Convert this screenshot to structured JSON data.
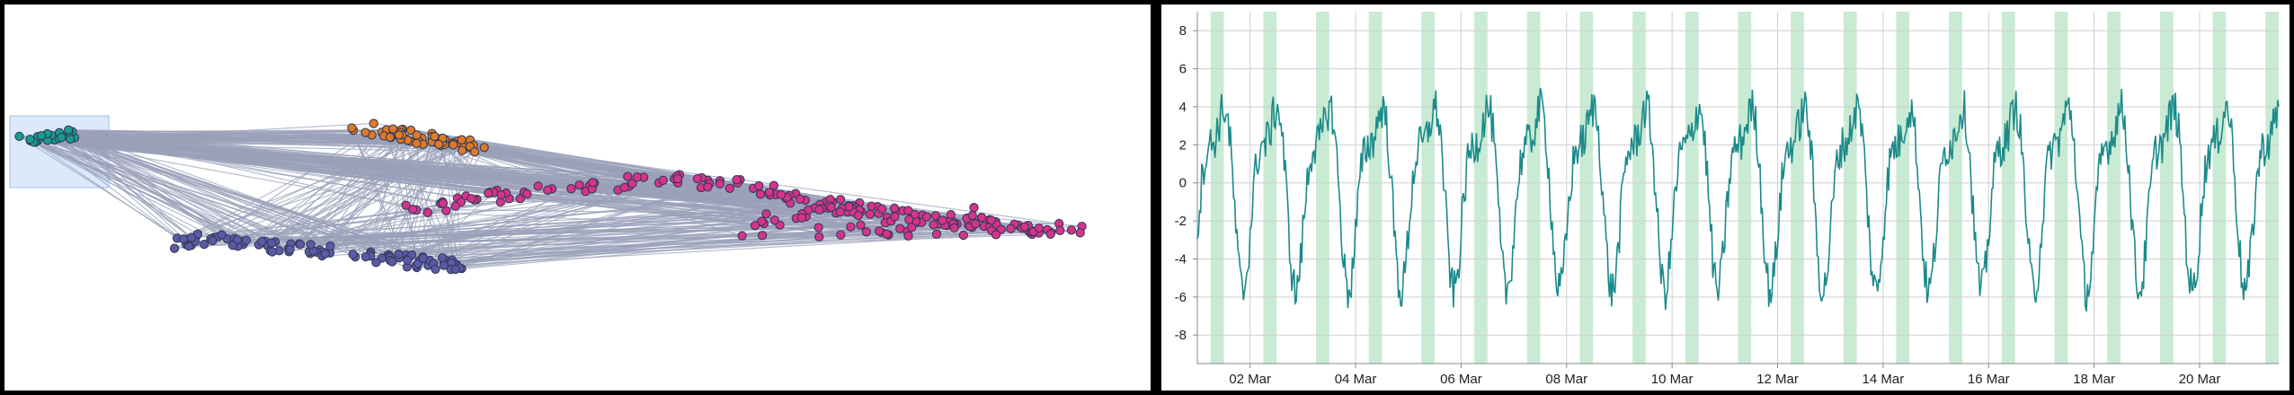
{
  "chart_data": [
    {
      "type": "scatter",
      "title": "",
      "xlabel": "",
      "ylabel": "",
      "grid": false,
      "legend": "none",
      "clusters": [
        {
          "name": "teal",
          "color": "#1a9b8f"
        },
        {
          "name": "orange",
          "color": "#e07a22"
        },
        {
          "name": "purple",
          "color": "#5b5aa6"
        },
        {
          "name": "magenta",
          "color": "#d6338a"
        }
      ],
      "edge_color": "#9aa0b8",
      "selection_box_color": "#dbe9fb",
      "selection": "teal"
    },
    {
      "type": "line",
      "title": "",
      "xlabel": "",
      "ylabel": "",
      "grid": true,
      "legend": "none",
      "series_color": "#1b8a8a",
      "band_color": "#c9ead3",
      "x_range": [
        "2024-03-01",
        "2024-03-21T12:00"
      ],
      "ylim": [
        -9.5,
        9
      ],
      "y_ticks": [
        8,
        6,
        4,
        2,
        0,
        -2,
        -4,
        -6,
        -8
      ],
      "x_ticks": [
        {
          "date": "2024-03-02",
          "label": "02 Mar"
        },
        {
          "date": "2024-03-04",
          "label": "04 Mar"
        },
        {
          "date": "2024-03-06",
          "label": "06 Mar"
        },
        {
          "date": "2024-03-08",
          "label": "08 Mar"
        },
        {
          "date": "2024-03-10",
          "label": "10 Mar"
        },
        {
          "date": "2024-03-12",
          "label": "12 Mar"
        },
        {
          "date": "2024-03-14",
          "label": "14 Mar"
        },
        {
          "date": "2024-03-16",
          "label": "16 Mar"
        },
        {
          "date": "2024-03-18",
          "label": "18 Mar"
        },
        {
          "date": "2024-03-20",
          "label": "20 Mar"
        }
      ],
      "bands_hours": [
        6,
        12
      ]
    }
  ]
}
